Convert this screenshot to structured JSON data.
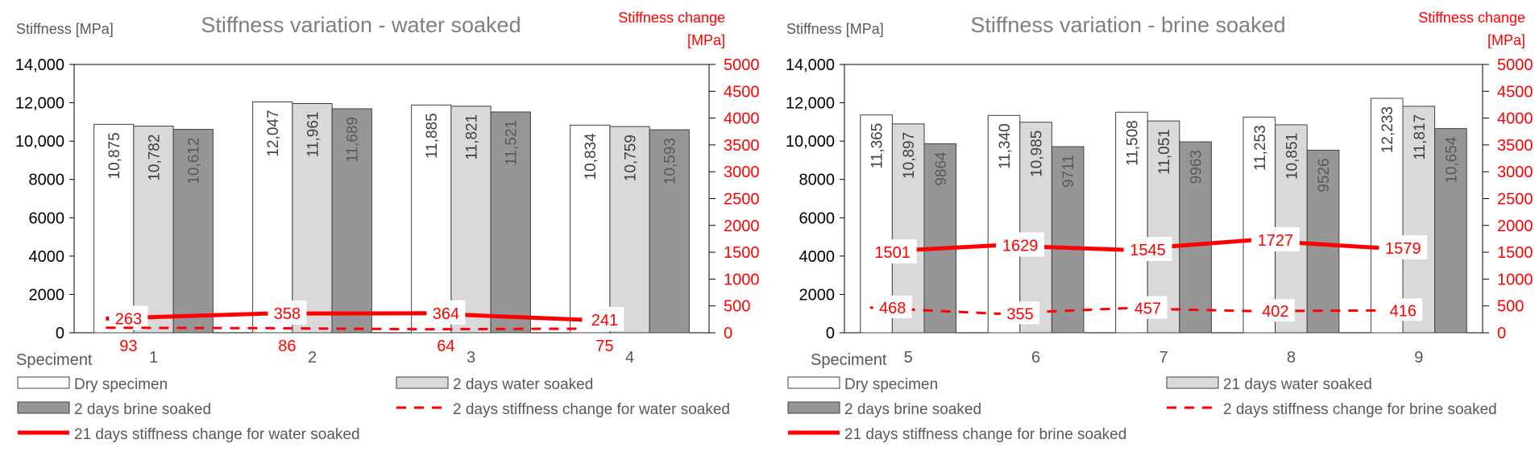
{
  "chart_data": [
    {
      "type": "bar",
      "title": "Stiffness variation - water soaked",
      "ylabel": "Stiffness [MPa]",
      "y2label_line1": "Stiffness change",
      "y2label_line2": "[MPa]",
      "xlabel": "Speciment",
      "ylim": [
        0,
        14000
      ],
      "y2lim": [
        0,
        5000
      ],
      "yticks": [
        0,
        2000,
        4000,
        6000,
        8000,
        10000,
        12000,
        14000
      ],
      "ytick_labels": [
        "0",
        "2000",
        "4000",
        "6000",
        "8000",
        "10,000",
        "12,000",
        "14,000"
      ],
      "y2ticks": [
        0,
        500,
        1000,
        1500,
        2000,
        2500,
        3000,
        3500,
        4000,
        4500,
        5000
      ],
      "y2tick_labels": [
        "0",
        "500",
        "1000",
        "1500",
        "2000",
        "2500",
        "3000",
        "3500",
        "4000",
        "4500",
        "5000"
      ],
      "categories": [
        "1",
        "2",
        "3",
        "4"
      ],
      "series": [
        {
          "name": "Dry specimen",
          "values": [
            10875,
            12047,
            11885,
            10834
          ],
          "labels": [
            "10,875",
            "12,047",
            "11,885",
            "10,834"
          ],
          "color": "#ffffff"
        },
        {
          "name": "2 days water soaked",
          "values": [
            10782,
            11961,
            11821,
            10759
          ],
          "labels": [
            "10,782",
            "11,961",
            "11,821",
            "10,759"
          ],
          "color": "#d9d9d9"
        },
        {
          "name": "2 days brine soaked",
          "values": [
            10612,
            11689,
            11521,
            10593
          ],
          "labels": [
            "10,612",
            "11,689",
            "11,521",
            "10,593"
          ],
          "color": "#969696"
        }
      ],
      "lines": [
        {
          "name": "21 days stiffness change for water soaked",
          "values": [
            263,
            358,
            364,
            241
          ],
          "style": "solid",
          "color": "#ff0000"
        },
        {
          "name": "2 days stiffness change for water soaked",
          "values": [
            93,
            86,
            64,
            75
          ],
          "style": "dashed",
          "color": "#ff0000"
        }
      ],
      "legend_order": [
        {
          "name": "Dry specimen",
          "kind": "bar",
          "color": "#ffffff"
        },
        {
          "name": "2 days water soaked",
          "kind": "bar",
          "color": "#d9d9d9"
        },
        {
          "name": "2 days brine soaked",
          "kind": "bar",
          "color": "#969696"
        },
        {
          "name": "2 days stiffness change for water soaked",
          "kind": "dashed",
          "color": "#ff0000"
        },
        {
          "name": "21 days stiffness change for water soaked",
          "kind": "solid",
          "color": "#ff0000"
        }
      ]
    },
    {
      "type": "bar",
      "title": "Stiffness variation - brine soaked",
      "ylabel": "Stiffness [MPa]",
      "y2label_line1": "Stiffness change",
      "y2label_line2": "[MPa]",
      "xlabel": "Speciment",
      "ylim": [
        0,
        14000
      ],
      "y2lim": [
        0,
        5000
      ],
      "yticks": [
        0,
        2000,
        4000,
        6000,
        8000,
        10000,
        12000,
        14000
      ],
      "ytick_labels": [
        "0",
        "2000",
        "4000",
        "6000",
        "8000",
        "10,000",
        "12,000",
        "14,000"
      ],
      "y2ticks": [
        0,
        500,
        1000,
        1500,
        2000,
        2500,
        3000,
        3500,
        4000,
        4500,
        5000
      ],
      "y2tick_labels": [
        "0",
        "500",
        "1000",
        "1500",
        "2000",
        "2500",
        "3000",
        "3500",
        "4000",
        "4500",
        "5000"
      ],
      "categories": [
        "5",
        "6",
        "7",
        "8",
        "9"
      ],
      "series": [
        {
          "name": "Dry specimen",
          "values": [
            11365,
            11340,
            11508,
            11253,
            12233
          ],
          "labels": [
            "11,365",
            "11,340",
            "11,508",
            "11,253",
            "12,233"
          ],
          "color": "#ffffff"
        },
        {
          "name": "21 days water soaked",
          "values": [
            10897,
            10985,
            11051,
            10851,
            11817
          ],
          "labels": [
            "10,897",
            "10,985",
            "11,051",
            "10,851",
            "11,817"
          ],
          "color": "#d9d9d9"
        },
        {
          "name": "2 days brine soaked",
          "values": [
            9864,
            9711,
            9963,
            9526,
            10654
          ],
          "labels": [
            "9864",
            "9711",
            "9963",
            "9526",
            "10,654"
          ],
          "color": "#969696"
        }
      ],
      "lines": [
        {
          "name": "21 days stiffness change for brine soaked",
          "values": [
            1501,
            1629,
            1545,
            1727,
            1579
          ],
          "style": "solid",
          "color": "#ff0000"
        },
        {
          "name": "2 days stiffness change for brine soaked",
          "values": [
            468,
            355,
            457,
            402,
            416
          ],
          "style": "dashed",
          "color": "#ff0000"
        }
      ],
      "legend_order": [
        {
          "name": "Dry specimen",
          "kind": "bar",
          "color": "#ffffff"
        },
        {
          "name": "21 days water soaked",
          "kind": "bar",
          "color": "#d9d9d9"
        },
        {
          "name": "2 days brine soaked",
          "kind": "bar",
          "color": "#969696"
        },
        {
          "name": "2 days stiffness change for brine soaked",
          "kind": "dashed",
          "color": "#ff0000"
        },
        {
          "name": "21 days stiffness change for brine soaked",
          "kind": "solid",
          "color": "#ff0000"
        }
      ]
    }
  ]
}
